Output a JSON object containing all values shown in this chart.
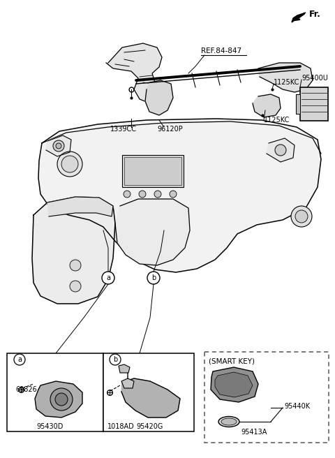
{
  "labels": {
    "REF_84_847": "REF.84-847",
    "1339CC": "1339CC",
    "96120P": "96120P",
    "1125KC_top": "1125KC",
    "95400U": "95400U",
    "1125KC_bot": "1125KC",
    "69826": "69826",
    "95430D": "95430D",
    "1018AD": "1018AD",
    "95420G": "95420G",
    "95413A": "95413A",
    "95440K": "95440K",
    "SMART_KEY": "(SMART KEY)",
    "FR": "Fr.",
    "a_label": "a",
    "b_label": "b"
  },
  "colors": {
    "line": "#000000",
    "bg": "#ffffff",
    "part_fill": "#d0d0d0",
    "dark_part": "#888888",
    "mid_part": "#b0b0b0",
    "light_part": "#e0e0e0",
    "dashed_border": "#555555",
    "text": "#000000"
  }
}
